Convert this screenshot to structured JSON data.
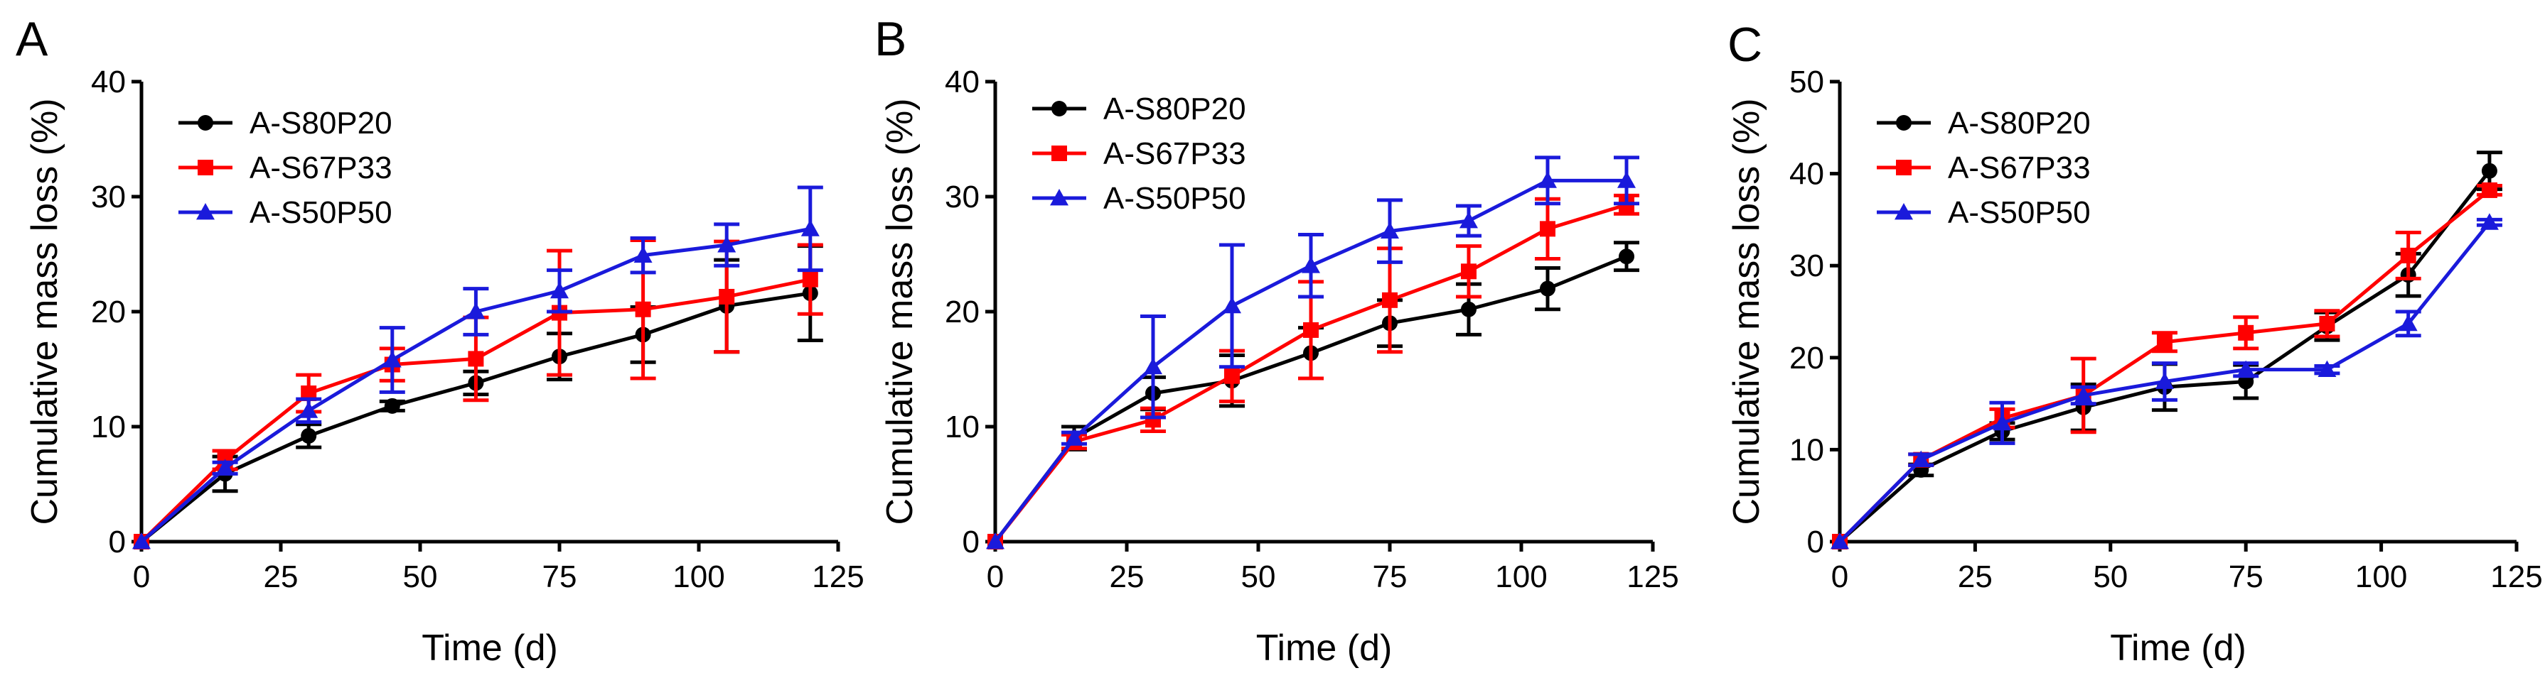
{
  "chart_data": [
    {
      "type": "line",
      "panel_label": "A",
      "xlabel": "Time (d)",
      "ylabel": "Cumulative mass loss (%)",
      "xlim": [
        0,
        125
      ],
      "ylim": [
        0,
        40
      ],
      "xticks": [
        0,
        25,
        50,
        75,
        100,
        125
      ],
      "yticks": [
        0,
        10,
        20,
        30,
        40
      ],
      "grid": false,
      "legend_position": "top-left",
      "x": [
        0,
        15,
        30,
        45,
        60,
        75,
        90,
        105,
        120
      ],
      "series": [
        {
          "name": "A-S80P20",
          "color": "#000000",
          "marker": "circle",
          "values": [
            0,
            5.9,
            9.2,
            11.8,
            13.8,
            16.1,
            18.0,
            20.5,
            21.6
          ],
          "errors": [
            0,
            1.5,
            1.0,
            0.4,
            1.0,
            2.0,
            2.4,
            4.0,
            4.1
          ]
        },
        {
          "name": "A-S67P33",
          "color": "#ff0000",
          "marker": "square",
          "values": [
            0,
            7.1,
            12.9,
            15.4,
            15.9,
            19.9,
            20.2,
            21.3,
            22.8
          ],
          "errors": [
            0,
            0.8,
            1.6,
            1.4,
            3.6,
            5.4,
            6.0,
            4.8,
            3.0
          ]
        },
        {
          "name": "A-S50P50",
          "color": "#1a1adb",
          "marker": "triangle",
          "values": [
            0,
            6.4,
            11.4,
            15.8,
            20.0,
            21.8,
            24.9,
            25.8,
            27.2
          ],
          "errors": [
            0,
            0.5,
            1.0,
            2.8,
            2.0,
            1.8,
            1.5,
            1.8,
            3.6
          ]
        }
      ]
    },
    {
      "type": "line",
      "panel_label": "B",
      "xlabel": "Time (d)",
      "ylabel": "Cumulative mass loss (%)",
      "xlim": [
        0,
        125
      ],
      "ylim": [
        0,
        40
      ],
      "xticks": [
        0,
        25,
        50,
        75,
        100,
        125
      ],
      "yticks": [
        0,
        10,
        20,
        30,
        40
      ],
      "grid": false,
      "legend_position": "top-left",
      "x": [
        0,
        15,
        30,
        45,
        60,
        75,
        90,
        105,
        120
      ],
      "series": [
        {
          "name": "A-S80P20",
          "color": "#000000",
          "marker": "circle",
          "values": [
            0,
            9.0,
            12.9,
            14.0,
            16.4,
            19.0,
            20.2,
            22.0,
            24.8
          ],
          "errors": [
            0,
            1.0,
            1.4,
            2.2,
            2.2,
            2.0,
            2.2,
            1.8,
            1.2
          ]
        },
        {
          "name": "A-S67P33",
          "color": "#ff0000",
          "marker": "square",
          "values": [
            0,
            8.7,
            10.6,
            14.4,
            18.4,
            21.0,
            23.5,
            27.2,
            29.3
          ],
          "errors": [
            0,
            0.6,
            1.0,
            2.2,
            4.2,
            4.5,
            2.2,
            2.6,
            0.8
          ]
        },
        {
          "name": "A-S50P50",
          "color": "#1a1adb",
          "marker": "triangle",
          "values": [
            0,
            9.0,
            15.2,
            20.5,
            24.0,
            27.0,
            27.9,
            31.4,
            31.4
          ],
          "errors": [
            0,
            0.5,
            4.4,
            5.3,
            2.7,
            2.7,
            1.3,
            2.0,
            2.0
          ]
        }
      ]
    },
    {
      "type": "line",
      "panel_label": "C",
      "xlabel": "Time (d)",
      "ylabel": "Cumulative mass loss (%)",
      "xlim": [
        0,
        125
      ],
      "ylim": [
        0,
        50
      ],
      "xticks": [
        0,
        25,
        50,
        75,
        100,
        125
      ],
      "yticks": [
        0,
        10,
        20,
        30,
        40,
        50
      ],
      "grid": false,
      "legend_position": "top-left",
      "x": [
        0,
        15,
        30,
        45,
        60,
        75,
        90,
        105,
        120
      ],
      "series": [
        {
          "name": "A-S80P20",
          "color": "#000000",
          "marker": "circle",
          "values": [
            0,
            7.8,
            12.0,
            14.6,
            16.8,
            17.4,
            23.4,
            29.0,
            40.3
          ],
          "errors": [
            0,
            0.6,
            0.9,
            2.5,
            2.5,
            1.8,
            1.5,
            2.3,
            2.0
          ]
        },
        {
          "name": "A-S67P33",
          "color": "#ff0000",
          "marker": "square",
          "values": [
            0,
            8.9,
            13.4,
            15.9,
            21.7,
            22.7,
            23.7,
            31.1,
            38.2
          ],
          "errors": [
            0,
            0.6,
            1.0,
            4.0,
            1.0,
            1.7,
            1.4,
            2.5,
            0.5
          ]
        },
        {
          "name": "A-S50P50",
          "color": "#1a1adb",
          "marker": "triangle",
          "values": [
            0,
            8.9,
            12.9,
            15.9,
            17.4,
            18.7,
            18.7,
            23.7,
            34.7
          ],
          "errors": [
            0,
            0.6,
            2.2,
            0.9,
            2.0,
            0.7,
            0.4,
            1.3,
            0.3
          ]
        }
      ]
    }
  ]
}
